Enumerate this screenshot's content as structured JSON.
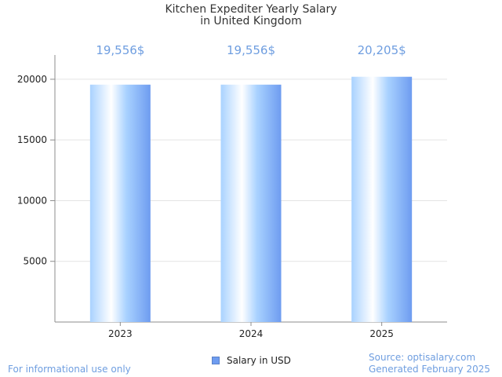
{
  "chart_data": {
    "type": "bar",
    "title_lines": [
      "Kitchen Expediter Yearly Salary",
      "in United Kingdom"
    ],
    "categories": [
      "2023",
      "2024",
      "2025"
    ],
    "values": [
      19556,
      19556,
      20205
    ],
    "data_labels": [
      "19,556$",
      "19,556$",
      "20,205$"
    ],
    "series": [
      {
        "name": "Salary in USD",
        "values": [
          19556,
          19556,
          20205
        ]
      }
    ],
    "y_ticks": [
      "5000",
      "10000",
      "15000",
      "20000"
    ],
    "ylim": [
      0,
      22000
    ],
    "grid": true,
    "legend_position": "bottom-center"
  },
  "colors": {
    "bar_light": "#ffffff",
    "bar_mid": "#a9d2ff",
    "bar_dark": "#6e9cf0",
    "value_label": "#6f9ee0",
    "grid": "#e4e4e4",
    "axis": "#8c8c8c"
  },
  "footer": {
    "disclaimer": "For informational use only",
    "source": "Source: optisalary.com",
    "generated": "Generated February 2025"
  }
}
